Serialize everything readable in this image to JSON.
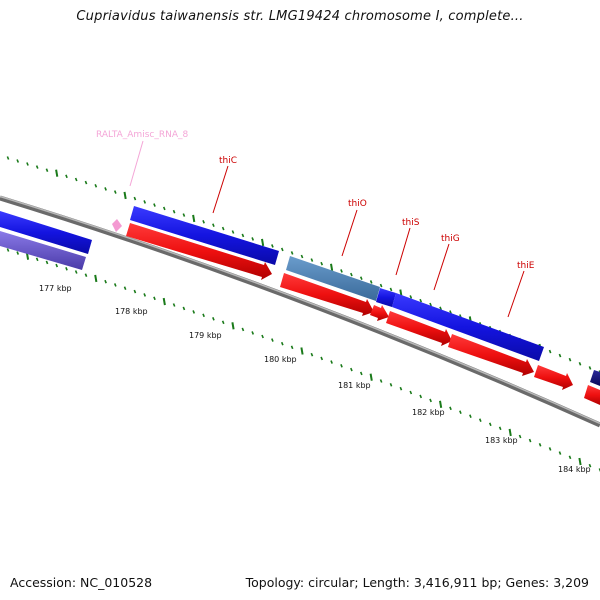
{
  "title": "Cupriavidus taiwanensis str. LMG19424 chromosome I, complete...",
  "footer": {
    "accession": "Accession: NC_010528",
    "summary": "Topology: circular; Length: 3,416,911 bp; Genes: 3,209"
  },
  "colors": {
    "forward_gene": "#1c1ce8",
    "reverse_cds": "#ee1111",
    "label_red": "#cc0000",
    "rna_pink": "#f4a6d7",
    "pseudo_gene": "#4a7fb5",
    "lavender_gene": "#6a5acd",
    "backbone": "#8a8a8a",
    "ticks": "#1a7a1a"
  },
  "scale_labels": [
    "177 kbp",
    "178 kbp",
    "179 kbp",
    "180 kbp",
    "181 kbp",
    "182 kbp",
    "183 kbp",
    "184 kbp"
  ],
  "feature_labels": [
    {
      "name": "RALTA_Amisc_RNA_8",
      "type": "rna"
    },
    {
      "name": "thiC",
      "type": "gene"
    },
    {
      "name": "thiO",
      "type": "gene"
    },
    {
      "name": "thiS",
      "type": "gene"
    },
    {
      "name": "thiG",
      "type": "gene"
    },
    {
      "name": "thiE",
      "type": "gene"
    }
  ]
}
